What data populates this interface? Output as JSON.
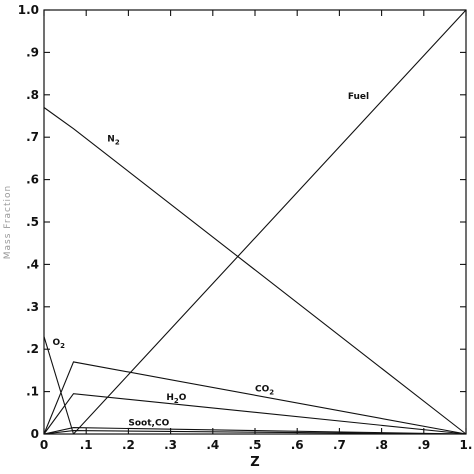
{
  "chart_data": {
    "type": "line",
    "title": "",
    "xlabel": "Z",
    "ylabel": "Mass Fraction",
    "xlim": [
      0,
      1.0
    ],
    "ylim": [
      0,
      1.0
    ],
    "grid": false,
    "legend": "none",
    "xticks": [
      0,
      0.1,
      0.2,
      0.3,
      0.4,
      0.5,
      0.6,
      0.7,
      0.8,
      0.9,
      1.0
    ],
    "xtick_labels": [
      "0",
      ".1",
      ".2",
      ".3",
      ".4",
      ".5",
      ".6",
      ".7",
      ".8",
      ".9",
      "1."
    ],
    "yticks": [
      0,
      0.1,
      0.2,
      0.3,
      0.4,
      0.5,
      0.6,
      0.7,
      0.8,
      0.9,
      1.0
    ],
    "ytick_labels": [
      "0",
      ".1",
      ".2",
      ".3",
      ".4",
      ".5",
      ".6",
      ".7",
      ".8",
      ".9",
      "1.0"
    ],
    "series": [
      {
        "name": "Fuel",
        "label_main": "Fuel",
        "label_sub": "",
        "x": [
          0,
          0.07,
          1.0
        ],
        "y": [
          0,
          0,
          1.0
        ],
        "label_at": [
          0.72,
          0.79
        ]
      },
      {
        "name": "N2",
        "label_main": "N",
        "label_sub": "2",
        "x": [
          0,
          0.07,
          1.0
        ],
        "y": [
          0.77,
          0.72,
          0
        ],
        "label_at": [
          0.15,
          0.69
        ]
      },
      {
        "name": "O2",
        "label_main": "O",
        "label_sub": "2",
        "x": [
          0,
          0.07
        ],
        "y": [
          0.23,
          0
        ],
        "label_at": [
          0.02,
          0.21
        ]
      },
      {
        "name": "CO2",
        "label_main": "CO",
        "label_sub": "2",
        "x": [
          0,
          0.07,
          1.0
        ],
        "y": [
          0,
          0.17,
          0
        ],
        "label_at": [
          0.5,
          0.1
        ]
      },
      {
        "name": "H2O",
        "label_main": "H",
        "label_sub": "2",
        "label_tail": "O",
        "x": [
          0,
          0.07,
          1.0
        ],
        "y": [
          0,
          0.095,
          0
        ],
        "label_at": [
          0.29,
          0.08
        ]
      },
      {
        "name": "Soot,CO",
        "label_main": "Soot,CO",
        "label_sub": "",
        "x": [
          0,
          0.07,
          1.0
        ],
        "y": [
          0,
          0.015,
          0
        ],
        "label_at": [
          0.2,
          0.02
        ]
      },
      {
        "name": "Soot,CO-2",
        "label_main": "",
        "label_sub": "",
        "x": [
          0,
          0.07,
          1.0
        ],
        "y": [
          0,
          0.008,
          0
        ],
        "label_at": null
      }
    ]
  }
}
